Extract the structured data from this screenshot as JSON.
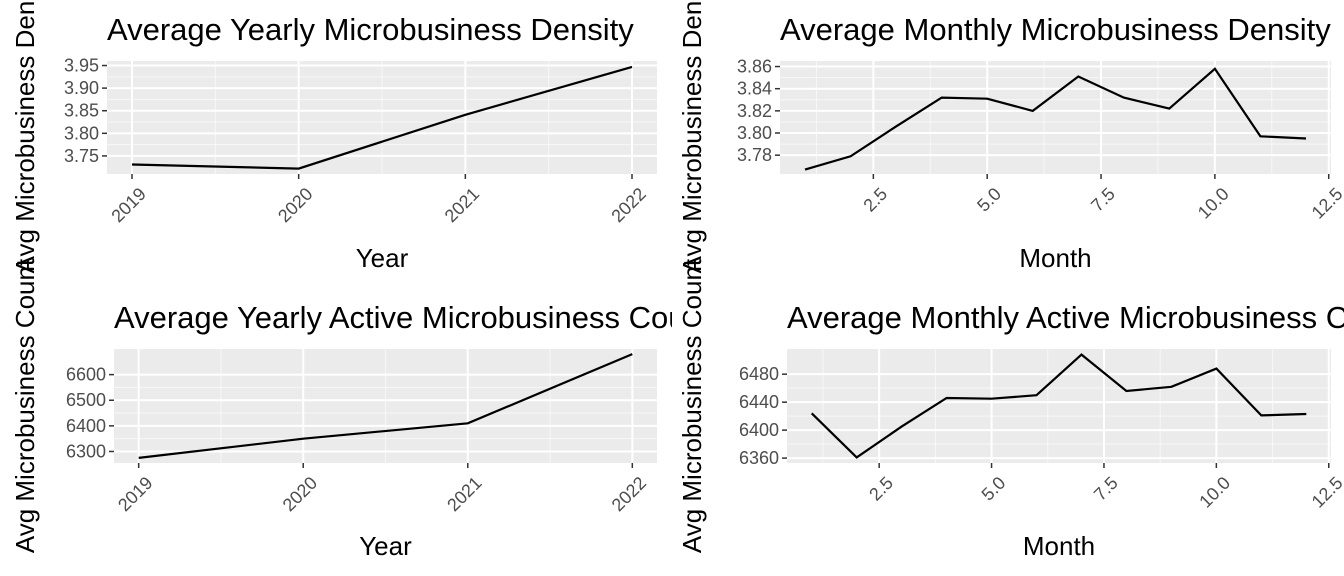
{
  "chart_data": [
    {
      "type": "line",
      "title": "Average Yearly Microbusiness Density",
      "xlabel": "Year",
      "ylabel": "Avg Microbusiness Density",
      "x": [
        2019,
        2020,
        2021,
        2022
      ],
      "y": [
        3.731,
        3.722,
        3.841,
        3.947
      ],
      "xlim": [
        2018.85,
        2022.15
      ],
      "ylim": [
        3.71,
        3.96
      ],
      "x_ticks": [
        2019,
        2020,
        2021,
        2022
      ],
      "x_tick_labels": [
        "2019",
        "2020",
        "2021",
        "2022"
      ],
      "y_ticks": [
        3.75,
        3.8,
        3.85,
        3.9,
        3.95
      ],
      "y_tick_labels": [
        "3.75",
        "3.80",
        "3.85",
        "3.90",
        "3.95"
      ],
      "grid": true
    },
    {
      "type": "line",
      "title": "Average Monthly Microbusiness Density",
      "xlabel": "Month",
      "ylabel": "Avg Microbusiness Density",
      "x": [
        1,
        2,
        3,
        4,
        5,
        6,
        7,
        8,
        9,
        10,
        11,
        12
      ],
      "y": [
        3.767,
        3.779,
        3.806,
        3.832,
        3.831,
        3.82,
        3.851,
        3.832,
        3.822,
        3.858,
        3.797,
        3.795
      ],
      "xlim": [
        0.45,
        12.55
      ],
      "ylim": [
        3.763,
        3.865
      ],
      "x_ticks": [
        2.5,
        5,
        7.5,
        10,
        12.5
      ],
      "x_tick_labels": [
        "2.5",
        "5.0",
        "7.5",
        "10.0",
        "12.5"
      ],
      "y_ticks": [
        3.78,
        3.8,
        3.82,
        3.84,
        3.86
      ],
      "y_tick_labels": [
        "3.78",
        "3.80",
        "3.82",
        "3.84",
        "3.86"
      ],
      "grid": true
    },
    {
      "type": "line",
      "title": "Average Yearly Active Microbusiness Count",
      "xlabel": "Year",
      "ylabel": "Avg Microbusiness Count",
      "x": [
        2019,
        2020,
        2021,
        2022
      ],
      "y": [
        6275,
        6350,
        6410,
        6680
      ],
      "xlim": [
        2018.85,
        2022.15
      ],
      "ylim": [
        6255,
        6700
      ],
      "x_ticks": [
        2019,
        2020,
        2021,
        2022
      ],
      "x_tick_labels": [
        "2019",
        "2020",
        "2021",
        "2022"
      ],
      "y_ticks": [
        6300,
        6400,
        6500,
        6600
      ],
      "y_tick_labels": [
        "6300",
        "6400",
        "6500",
        "6600"
      ],
      "grid": true
    },
    {
      "type": "line",
      "title": "Average Monthly Active Microbusiness Count",
      "xlabel": "Month",
      "ylabel": "Avg Microbusiness Count",
      "x": [
        1,
        2,
        3,
        4,
        5,
        6,
        7,
        8,
        9,
        10,
        11,
        12
      ],
      "y": [
        6424,
        6361,
        6405,
        6446,
        6445,
        6450,
        6508,
        6456,
        6462,
        6488,
        6421,
        6423
      ],
      "xlim": [
        0.45,
        12.55
      ],
      "ylim": [
        6353,
        6516
      ],
      "x_ticks": [
        2.5,
        5,
        7.5,
        10,
        12.5
      ],
      "x_tick_labels": [
        "2.5",
        "5.0",
        "7.5",
        "10.0",
        "12.5"
      ],
      "y_ticks": [
        6360,
        6400,
        6440,
        6480
      ],
      "y_tick_labels": [
        "6360",
        "6400",
        "6440",
        "6480"
      ],
      "grid": true
    }
  ]
}
